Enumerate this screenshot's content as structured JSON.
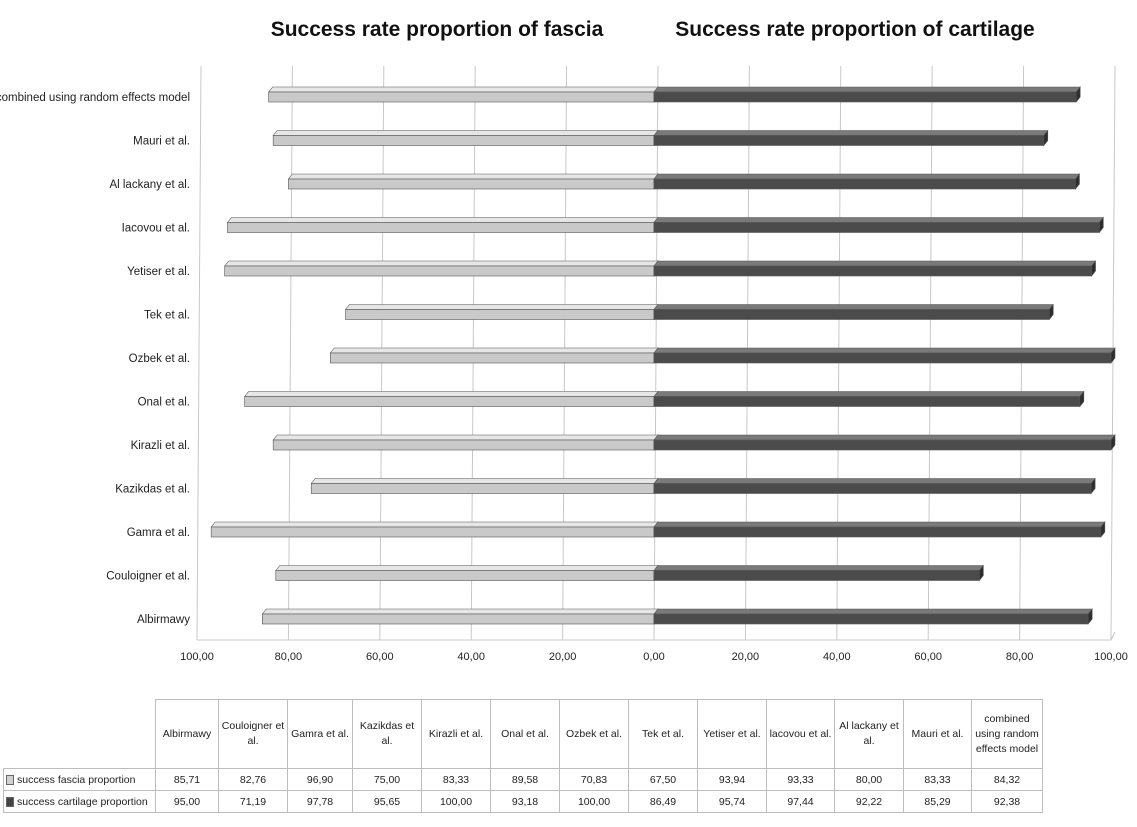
{
  "chart_data": {
    "type": "bar",
    "orientation": "horizontal-butterfly",
    "title_left": "Success rate proportion of fascia",
    "title_right": "Success rate proportion of cartilage",
    "categories": [
      "Albirmawy",
      "Couloigner et al.",
      "Gamra et al.",
      "Kazikdas et al.",
      "Kirazli et al.",
      "Onal et al.",
      "Ozbek et al.",
      "Tek et al.",
      "Yetiser et al.",
      "Iacovou et al.",
      "Al lackany et al.",
      "Mauri et al.",
      "combined using random effects model"
    ],
    "table_headers": [
      "Albirmawy",
      "Couloigner et al.",
      "Gamra et al.",
      "Kazikdas et al.",
      "Kirazli et al.",
      "Onal et al.",
      "Ozbek et al.",
      "Tek et al.",
      "Yetiser et al.",
      "lacovou et al.",
      "Al lackany et al.",
      "Mauri et al.",
      "combined using random effects model"
    ],
    "axis_ticks": [
      "100,00",
      "80,00",
      "60,00",
      "40,00",
      "20,00",
      "0,00",
      "20,00",
      "40,00",
      "60,00",
      "80,00",
      "100,00"
    ],
    "xlim": [
      0,
      100
    ],
    "series": [
      {
        "name": "success fascia proportion",
        "side": "left",
        "color": "#c8c8c8",
        "values": [
          85.71,
          82.76,
          96.9,
          75.0,
          83.33,
          89.58,
          70.83,
          67.5,
          93.94,
          93.33,
          80.0,
          83.33,
          84.32
        ],
        "labels": [
          "85,71",
          "82,76",
          "96,90",
          "75,00",
          "83,33",
          "89,58",
          "70,83",
          "67,50",
          "93,94",
          "93,33",
          "80,00",
          "83,33",
          "84,32"
        ]
      },
      {
        "name": "success cartilage proportion",
        "side": "right",
        "color": "#4a4a4a",
        "values": [
          95.0,
          71.19,
          97.78,
          95.65,
          100.0,
          93.18,
          100.0,
          86.49,
          95.74,
          97.44,
          92.22,
          85.29,
          92.38
        ],
        "labels": [
          "95,00",
          "71,19",
          "97,78",
          "95,65",
          "100,00",
          "93,18",
          "100,00",
          "86,49",
          "95,74",
          "97,44",
          "92,22",
          "85,29",
          "92,38"
        ]
      }
    ],
    "grid": true,
    "legend": "data-table"
  }
}
